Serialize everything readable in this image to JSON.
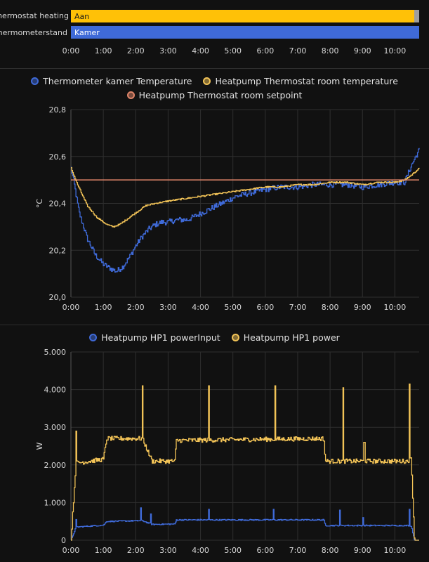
{
  "timeline": {
    "rows": [
      {
        "label": "p Thermostat heating",
        "state": "Aan",
        "color": "#ffc107",
        "end_color": "#9e9e9e"
      },
      {
        "label": "Thermometerstand",
        "state": "Kamer",
        "color": "#3f6ad8"
      }
    ],
    "x_ticks": [
      "0:00",
      "1:00",
      "2:00",
      "3:00",
      "4:00",
      "5:00",
      "6:00",
      "7:00",
      "8:00",
      "9:00",
      "10:00"
    ]
  },
  "chart_data": [
    {
      "type": "line",
      "title": "",
      "xlabel": "",
      "ylabel": "°C",
      "ylim": [
        20.0,
        20.8
      ],
      "xlim_hours": [
        0,
        10.75
      ],
      "x_tick_labels": [
        "0:00",
        "1:00",
        "2:00",
        "3:00",
        "4:00",
        "5:00",
        "6:00",
        "7:00",
        "8:00",
        "9:00",
        "10:00"
      ],
      "y_tick_labels": [
        "20,0",
        "20,2",
        "20,4",
        "20,6",
        "20,8"
      ],
      "y_ticks": [
        20.0,
        20.2,
        20.4,
        20.6,
        20.8
      ],
      "series": [
        {
          "name": "Thermometer kamer Temperature",
          "color": "#3f6ad8",
          "step": true,
          "noise": 0.012,
          "x": [
            0,
            0.1,
            0.25,
            0.5,
            0.75,
            1.0,
            1.25,
            1.4,
            1.6,
            1.8,
            2.0,
            2.2,
            2.4,
            2.6,
            2.8,
            3.0,
            3.3,
            3.6,
            3.9,
            4.2,
            4.5,
            4.8,
            5.1,
            5.4,
            5.7,
            6.0,
            6.5,
            7.0,
            7.5,
            8.0,
            8.5,
            9.0,
            9.5,
            10.0,
            10.3,
            10.5,
            10.75
          ],
          "values": [
            20.55,
            20.48,
            20.36,
            20.25,
            20.18,
            20.14,
            20.12,
            20.11,
            20.13,
            20.17,
            20.22,
            20.26,
            20.29,
            20.31,
            20.32,
            20.32,
            20.33,
            20.33,
            20.35,
            20.37,
            20.39,
            20.41,
            20.43,
            20.44,
            20.45,
            20.46,
            20.47,
            20.47,
            20.48,
            20.48,
            20.48,
            20.47,
            20.48,
            20.49,
            20.49,
            20.56,
            20.63
          ]
        },
        {
          "name": "Heatpump Thermostat room temperature",
          "color": "#f2c357",
          "step": true,
          "noise": 0.003,
          "x": [
            0,
            0.2,
            0.5,
            0.8,
            1.1,
            1.3,
            1.5,
            1.7,
            2.0,
            2.3,
            2.6,
            3.0,
            3.5,
            4.0,
            4.5,
            5.0,
            5.5,
            6.0,
            6.5,
            7.0,
            7.5,
            8.0,
            8.5,
            9.0,
            9.5,
            10.0,
            10.3,
            10.5,
            10.75
          ],
          "values": [
            20.55,
            20.48,
            20.39,
            20.34,
            20.31,
            20.3,
            20.31,
            20.33,
            20.36,
            20.39,
            20.4,
            20.41,
            20.42,
            20.43,
            20.44,
            20.45,
            20.46,
            20.47,
            20.47,
            20.48,
            20.48,
            20.49,
            20.49,
            20.48,
            20.49,
            20.49,
            20.5,
            20.52,
            20.55
          ]
        },
        {
          "name": "Heatpump Thermostat room setpoint",
          "color": "#e0856a",
          "step": false,
          "noise": 0,
          "x": [
            0,
            10.75
          ],
          "values": [
            20.5,
            20.5
          ]
        }
      ]
    },
    {
      "type": "line",
      "title": "",
      "xlabel": "",
      "ylabel": "W",
      "ylim": [
        0,
        5000
      ],
      "xlim_hours": [
        0,
        10.75
      ],
      "x_tick_labels": [
        "0:00",
        "1:00",
        "2:00",
        "3:00",
        "4:00",
        "5:00",
        "6:00",
        "7:00",
        "8:00",
        "9:00",
        "10:00"
      ],
      "y_tick_labels": [
        "0",
        "1.000",
        "2.000",
        "3.000",
        "4.000",
        "5.000"
      ],
      "y_ticks": [
        0,
        1000,
        2000,
        3000,
        4000,
        5000
      ],
      "series": [
        {
          "name": "Heatpump HP1 powerInput",
          "color": "#3f6ad8",
          "step": true,
          "noise": 15,
          "x": [
            0,
            0.15,
            0.16,
            1.0,
            1.1,
            2.2,
            2.5,
            3.2,
            3.25,
            7.8,
            7.85,
            10.4,
            10.5,
            10.6,
            10.75
          ],
          "values": [
            0,
            350,
            350,
            400,
            500,
            520,
            420,
            430,
            540,
            540,
            390,
            390,
            380,
            0,
            0
          ],
          "spikes": [
            [
              0.15,
              550
            ],
            [
              2.15,
              860
            ],
            [
              2.45,
              700
            ],
            [
              4.25,
              820
            ],
            [
              6.25,
              820
            ],
            [
              8.3,
              800
            ],
            [
              9.0,
              600
            ],
            [
              10.45,
              820
            ]
          ]
        },
        {
          "name": "Heatpump HP1 power",
          "color": "#f2c357",
          "step": true,
          "noise": 60,
          "x": [
            0,
            0.15,
            0.16,
            1.0,
            1.1,
            2.2,
            2.5,
            3.2,
            3.25,
            7.8,
            7.85,
            10.4,
            10.5,
            10.6,
            10.75
          ],
          "values": [
            0,
            2050,
            2050,
            2150,
            2700,
            2700,
            2100,
            2100,
            2650,
            2700,
            2100,
            2100,
            2150,
            0,
            0
          ],
          "spikes": [
            [
              0.15,
              2900
            ],
            [
              2.2,
              4100
            ],
            [
              4.25,
              4100
            ],
            [
              6.3,
              4100
            ],
            [
              8.4,
              4050
            ],
            [
              9.05,
              2600
            ],
            [
              10.45,
              4150
            ]
          ]
        }
      ]
    }
  ]
}
